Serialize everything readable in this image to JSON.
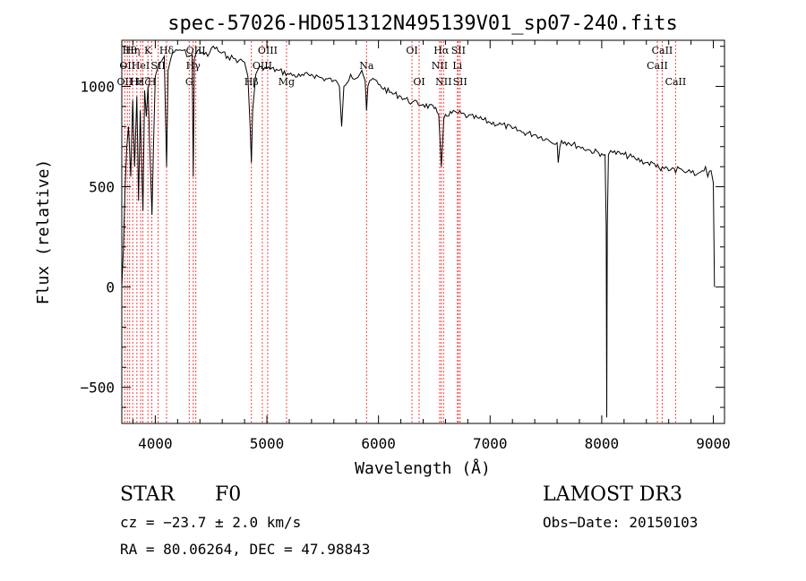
{
  "chart_data": {
    "type": "line",
    "title": "spec-57026-HD051312N495139V01_sp07-240.fits",
    "xlabel": "Wavelength (Å)",
    "ylabel": "Flux (relative)",
    "xlim": [
      3700,
      9100
    ],
    "ylim": [
      -680,
      1230
    ],
    "xticks": [
      {
        "v": 4000,
        "label": "4000"
      },
      {
        "v": 5000,
        "label": "5000"
      },
      {
        "v": 6000,
        "label": "6000"
      },
      {
        "v": 7000,
        "label": "7000"
      },
      {
        "v": 8000,
        "label": "8000"
      },
      {
        "v": 9000,
        "label": "9000"
      }
    ],
    "yticks": [
      {
        "v": -500,
        "label": "−500"
      },
      {
        "v": 0,
        "label": "0"
      },
      {
        "v": 500,
        "label": "500"
      },
      {
        "v": 1000,
        "label": "1000"
      }
    ],
    "series": [
      {
        "name": "flux",
        "x": [
          3700,
          3715,
          3730,
          3745,
          3760,
          3780,
          3798,
          3815,
          3835,
          3850,
          3865,
          3889,
          3905,
          3920,
          3935,
          3950,
          3970,
          3985,
          4000,
          4030,
          4060,
          4080,
          4101,
          4115,
          4140,
          4170,
          4200,
          4250,
          4300,
          4330,
          4340,
          4350,
          4380,
          4420,
          4470,
          4520,
          4580,
          4650,
          4700,
          4750,
          4800,
          4830,
          4850,
          4861,
          4872,
          4900,
          4950,
          5000,
          5100,
          5200,
          5300,
          5400,
          5500,
          5600,
          5650,
          5670,
          5690,
          5750,
          5800,
          5850,
          5880,
          5893,
          5905,
          5950,
          6000,
          6100,
          6200,
          6300,
          6400,
          6500,
          6540,
          6563,
          6585,
          6600,
          6700,
          6800,
          6900,
          7000,
          7100,
          7200,
          7300,
          7400,
          7500,
          7550,
          7600,
          7610,
          7625,
          7640,
          7700,
          7800,
          7900,
          8000,
          8030,
          8040,
          8045,
          8050,
          8060,
          8080,
          8100,
          8200,
          8300,
          8400,
          8500,
          8530,
          8542,
          8560,
          8600,
          8650,
          8662,
          8680,
          8700,
          8750,
          8800,
          8850,
          8900,
          8930,
          8950,
          8980,
          9000,
          9010
        ],
        "y": [
          0,
          200,
          500,
          700,
          800,
          550,
          930,
          600,
          950,
          430,
          880,
          380,
          980,
          850,
          1000,
          700,
          360,
          720,
          1050,
          1110,
          1130,
          1150,
          600,
          1080,
          1140,
          1170,
          1180,
          1180,
          1150,
          1160,
          550,
          1140,
          1180,
          1170,
          1150,
          1200,
          1170,
          1150,
          1140,
          1130,
          1120,
          1050,
          800,
          620,
          880,
          1060,
          1100,
          1090,
          1080,
          1060,
          1050,
          1060,
          1040,
          1030,
          1000,
          800,
          1000,
          1060,
          1040,
          1080,
          1030,
          880,
          1000,
          1040,
          1010,
          970,
          950,
          920,
          910,
          890,
          860,
          600,
          840,
          860,
          870,
          850,
          840,
          820,
          810,
          790,
          770,
          760,
          740,
          720,
          720,
          620,
          700,
          730,
          720,
          700,
          680,
          665,
          660,
          300,
          -650,
          300,
          660,
          680,
          670,
          660,
          640,
          620,
          610,
          580,
          600,
          590,
          580,
          590,
          570,
          600,
          590,
          570,
          570,
          560,
          580,
          600,
          550,
          580,
          520,
          0
        ]
      }
    ],
    "lines": [
      {
        "w": 3727,
        "label": "OII",
        "row": 3,
        "color": "#ff4040"
      },
      {
        "w": 3750,
        "label": "OII",
        "row": 2,
        "color": "#ff4040"
      },
      {
        "w": 3770,
        "label": "Hθ",
        "row": 1,
        "color": "#ff4040"
      },
      {
        "w": 3798,
        "label": "Hη",
        "row": 1,
        "color": "#ff4040"
      },
      {
        "w": 3835,
        "label": "Hε",
        "row": 3,
        "color": "#ff4040"
      },
      {
        "w": 3869,
        "label": "HeI",
        "row": 2,
        "color": "#ff4040"
      },
      {
        "w": 3889,
        "label": "Hζ",
        "row": 3,
        "color": "#ff4040"
      },
      {
        "w": 3934,
        "label": "K",
        "row": 1,
        "color": "#ff4040"
      },
      {
        "w": 3969,
        "label": "H",
        "row": 3,
        "color": "#ff4040"
      },
      {
        "w": 4026,
        "label": "SII",
        "row": 2,
        "color": "#ff4040"
      },
      {
        "w": 4101,
        "label": "Hδ",
        "row": 1,
        "color": "#ff4040"
      },
      {
        "w": 4304,
        "label": "G",
        "row": 3,
        "color": "#ff4040"
      },
      {
        "w": 4340,
        "label": "Hγ",
        "row": 2,
        "color": "#ff4040"
      },
      {
        "w": 4363,
        "label": "OIII",
        "row": 1,
        "color": "#ff4040"
      },
      {
        "w": 4861,
        "label": "Hβ",
        "row": 3,
        "color": "#ff4040"
      },
      {
        "w": 4959,
        "label": "OIII",
        "row": 2,
        "color": "#ff4040"
      },
      {
        "w": 5007,
        "label": "OIII",
        "row": 1,
        "color": "#ff4040"
      },
      {
        "w": 5176,
        "label": "Mg",
        "row": 3,
        "color": "#ff4040"
      },
      {
        "w": 5893,
        "label": "Na",
        "row": 2,
        "color": "#ff4040"
      },
      {
        "w": 6300,
        "label": "OI",
        "row": 1,
        "color": "#ff4040"
      },
      {
        "w": 6364,
        "label": "OI",
        "row": 3,
        "color": "#ff4040"
      },
      {
        "w": 6548,
        "label": "NII",
        "row": 2,
        "color": "#ff4040"
      },
      {
        "w": 6563,
        "label": "Hα",
        "row": 1,
        "color": "#ff4040"
      },
      {
        "w": 6583,
        "label": "NII",
        "row": 3,
        "color": "#ff4040"
      },
      {
        "w": 6707,
        "label": "Li",
        "row": 2,
        "color": "#ff4040"
      },
      {
        "w": 6716,
        "label": "SII",
        "row": 1,
        "color": "#ff4040"
      },
      {
        "w": 6731,
        "label": "SII",
        "row": 3,
        "color": "#ff4040"
      },
      {
        "w": 8498,
        "label": "CaII",
        "row": 2,
        "color": "#ff4040"
      },
      {
        "w": 8542,
        "label": "CaII",
        "row": 1,
        "color": "#ff4040"
      },
      {
        "w": 8662,
        "label": "CaII",
        "row": 3,
        "color": "#ff4040"
      }
    ]
  },
  "info": {
    "object_class": "STAR",
    "subclass": "F0",
    "survey": "LAMOST DR3",
    "cz": "cz = −23.7 ± 2.0 km/s",
    "obs_date": "Obs−Date: 20150103",
    "coords": "RA =  80.06264, DEC =  47.98843"
  }
}
